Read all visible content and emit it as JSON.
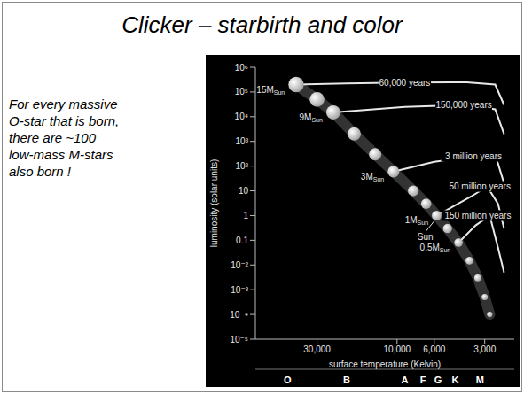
{
  "title": "Clicker – starbirth and color",
  "note_lines": [
    "For every massive",
    "O-star that is born,",
    "there are ~100",
    "low-mass M-stars",
    "also born !"
  ],
  "chart_data": {
    "type": "scatter",
    "x_label": "surface temperature (Kelvin)",
    "y_label": "luminosity (solar units)",
    "log": true,
    "xlim": [
      70000,
      2000
    ],
    "xticks": [
      {
        "value": 30000,
        "label": "30,000"
      },
      {
        "value": 10000,
        "label": "10,000"
      },
      {
        "value": 6000,
        "label": "6,000"
      },
      {
        "value": 3000,
        "label": "3,000"
      }
    ],
    "ylim": [
      1e-05,
      1000000
    ],
    "yticks": [
      {
        "value": 1000000,
        "label": "10⁶"
      },
      {
        "value": 100000,
        "label": "10⁵"
      },
      {
        "value": 10000,
        "label": "10⁴"
      },
      {
        "value": 1000,
        "label": "10³"
      },
      {
        "value": 100,
        "label": "10²"
      },
      10,
      1,
      0.1,
      {
        "value": 0.01,
        "label": "10⁻²"
      },
      {
        "value": 0.001,
        "label": "10⁻³"
      },
      {
        "value": 0.0001,
        "label": "10⁻⁴"
      },
      {
        "value": 1e-05,
        "label": "10⁻⁵"
      }
    ],
    "spectral_classes": [
      {
        "value": 45000,
        "label": "O"
      },
      {
        "value": 20000,
        "label": "B"
      },
      {
        "value": 9000,
        "label": "A"
      },
      {
        "value": 7000,
        "label": "F"
      },
      {
        "value": 5700,
        "label": "G"
      },
      {
        "value": 4500,
        "label": "K"
      },
      {
        "value": 3200,
        "label": "M"
      }
    ],
    "stars": {
      "color": "#a0a0a0",
      "points": [
        {
          "x": 40000,
          "y": 200000,
          "label": "15M",
          "sub": "Sun"
        },
        {
          "x": 30000,
          "y": 50000
        },
        {
          "x": 24000,
          "y": 15000,
          "label": "9M",
          "sub": "Sun"
        },
        {
          "x": 18000,
          "y": 2000
        },
        {
          "x": 13500,
          "y": 300
        },
        {
          "x": 10500,
          "y": 60,
          "label": "3M",
          "sub": "Sun"
        },
        {
          "x": 8000,
          "y": 10
        },
        {
          "x": 6700,
          "y": 3
        },
        {
          "x": 5800,
          "y": 1,
          "label": "1M",
          "sub": "Sun",
          "annotation": "Sun"
        },
        {
          "x": 5000,
          "y": 0.3
        },
        {
          "x": 4300,
          "y": 0.08,
          "label": "0.5M",
          "sub": "Sun"
        },
        {
          "x": 3700,
          "y": 0.015
        },
        {
          "x": 3300,
          "y": 0.003
        },
        {
          "x": 3000,
          "y": 0.0005
        },
        {
          "x": 2800,
          "y": 0.0001
        }
      ]
    },
    "tracks": [
      {
        "label": "60,000 years",
        "color": "#e8e8e8",
        "x": [
          2300,
          2600,
          4000,
          9000,
          20000,
          40000
        ],
        "y": [
          30000,
          200000,
          250000,
          240000,
          220000,
          200000
        ]
      },
      {
        "label": "150,000 years",
        "color": "#e8e8e8",
        "x": [
          2300,
          2600,
          4000,
          9000,
          24000
        ],
        "y": [
          2000,
          20000,
          30000,
          25000,
          15000
        ]
      },
      {
        "label": "3 million years",
        "color": "#e8e8e8",
        "x": [
          2300,
          2600,
          3500,
          6000,
          10500
        ],
        "y": [
          20,
          300,
          250,
          150,
          60
        ]
      },
      {
        "label": "50 million years",
        "color": "#e8e8e8",
        "x": [
          2300,
          2500,
          2900,
          3600,
          5800
        ],
        "y": [
          0.3,
          3,
          15,
          6,
          1
        ]
      },
      {
        "label": "150 million years",
        "color": "#e8e8e8",
        "x": [
          2300,
          2500,
          2800,
          3400,
          4300
        ],
        "y": [
          0.005,
          0.05,
          1,
          0.4,
          0.08
        ]
      }
    ]
  }
}
